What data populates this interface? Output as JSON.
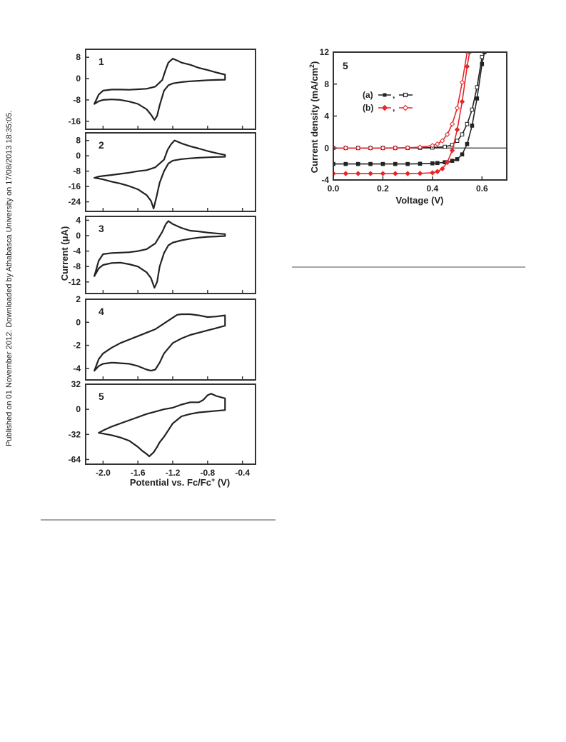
{
  "side_note": "Published on 01 November 2012. Downloaded by Athabasca University on 17/08/2013 18:35:05.",
  "colors": {
    "black": "#222222",
    "red": "#e8262b",
    "frame": "#333333",
    "separator": "#a6a6a6"
  },
  "chart_data": [
    {
      "type": "line",
      "xlabel": "Potential vs. Fc/Fc",
      "xlabel_sup": "+",
      "xlabel_tail": " (V)",
      "ylabel": "Current (μA)",
      "xlim": [
        -2.2,
        -0.25
      ],
      "xticks": [
        "-2.0",
        "-1.6",
        "-1.2",
        "-0.8",
        "-0.4"
      ],
      "xtick_values": [
        -2.0,
        -1.6,
        -1.2,
        -0.8,
        -0.4
      ],
      "panels": [
        {
          "label": "1",
          "ylim": [
            -19,
            11
          ],
          "yticks": [
            "8",
            "0",
            "-8",
            "-16"
          ],
          "ytick_values": [
            8,
            0,
            -8,
            -16
          ],
          "x": [
            -2.1,
            -2.05,
            -2.0,
            -1.9,
            -1.8,
            -1.7,
            -1.6,
            -1.5,
            -1.45,
            -1.41,
            -1.38,
            -1.35,
            -1.3,
            -1.25,
            -1.2,
            -1.1,
            -1.0,
            -0.9,
            -0.8,
            -0.7,
            -0.6,
            -0.6,
            -0.7,
            -0.8,
            -0.9,
            -1.0,
            -1.1,
            -1.15,
            -1.2,
            -1.25,
            -1.28,
            -1.32,
            -1.4,
            -1.5,
            -1.6,
            -1.7,
            -1.8,
            -1.9,
            -2.0,
            -2.05,
            -2.1
          ],
          "y": [
            -9.5,
            -8.5,
            -8.0,
            -7.8,
            -8.0,
            -8.6,
            -9.5,
            -11.5,
            -13.5,
            -15.5,
            -14.0,
            -10.0,
            -4.5,
            -2.5,
            -1.8,
            -1.3,
            -1.0,
            -0.8,
            -0.6,
            -0.5,
            -0.4,
            1.5,
            2.3,
            3.2,
            4.0,
            5.2,
            6.0,
            6.8,
            7.5,
            6.0,
            3.5,
            -0.5,
            -3.0,
            -3.8,
            -4.0,
            -4.2,
            -4.1,
            -4.1,
            -4.5,
            -6.0,
            -9.5
          ]
        },
        {
          "label": "2",
          "ylim": [
            -29,
            12
          ],
          "yticks": [
            "8",
            "0",
            "-8",
            "-16",
            "-24"
          ],
          "ytick_values": [
            8,
            0,
            -8,
            -16,
            -24
          ],
          "x": [
            -2.1,
            -2.05,
            -2.0,
            -1.9,
            -1.8,
            -1.7,
            -1.6,
            -1.5,
            -1.45,
            -1.42,
            -1.39,
            -1.35,
            -1.3,
            -1.25,
            -1.2,
            -1.1,
            -1.0,
            -0.9,
            -0.8,
            -0.7,
            -0.6,
            -0.6,
            -0.7,
            -0.8,
            -0.9,
            -1.0,
            -1.1,
            -1.15,
            -1.18,
            -1.22,
            -1.26,
            -1.3,
            -1.4,
            -1.5,
            -1.6,
            -1.7,
            -1.8,
            -1.9,
            -2.0,
            -2.05,
            -2.1
          ],
          "y": [
            -11.5,
            -11.8,
            -12.3,
            -13.5,
            -14.5,
            -15.8,
            -17.5,
            -20.5,
            -23.5,
            -27.5,
            -22.0,
            -14.0,
            -8.0,
            -4.0,
            -2.5,
            -1.7,
            -1.3,
            -1.0,
            -0.8,
            -0.6,
            -0.5,
            0.5,
            1.4,
            2.5,
            3.8,
            5.0,
            6.5,
            7.5,
            8.0,
            6.0,
            3.0,
            -2.0,
            -6.0,
            -7.5,
            -8.0,
            -8.8,
            -9.4,
            -10.0,
            -10.5,
            -10.8,
            -11.5
          ]
        },
        {
          "label": "3",
          "ylim": [
            -15,
            5
          ],
          "yticks": [
            "4",
            "0",
            "-4",
            "-8",
            "-12"
          ],
          "ytick_values": [
            4,
            0,
            -4,
            -8,
            -12
          ],
          "x": [
            -2.1,
            -2.05,
            -2.0,
            -1.9,
            -1.8,
            -1.7,
            -1.6,
            -1.5,
            -1.45,
            -1.41,
            -1.38,
            -1.35,
            -1.3,
            -1.25,
            -1.2,
            -1.1,
            -1.0,
            -0.9,
            -0.8,
            -0.7,
            -0.6,
            -0.6,
            -0.7,
            -0.8,
            -0.9,
            -1.0,
            -1.1,
            -1.2,
            -1.25,
            -1.28,
            -1.32,
            -1.4,
            -1.5,
            -1.6,
            -1.7,
            -1.8,
            -1.9,
            -2.0,
            -2.05,
            -2.1
          ],
          "y": [
            -10.5,
            -8.5,
            -7.6,
            -7.1,
            -7.0,
            -7.4,
            -8.0,
            -9.5,
            -11.0,
            -13.5,
            -12.0,
            -8.0,
            -4.5,
            -2.5,
            -1.8,
            -1.2,
            -0.8,
            -0.5,
            -0.3,
            -0.2,
            -0.1,
            0.4,
            0.6,
            0.8,
            1.1,
            1.3,
            2.0,
            3.0,
            3.8,
            3.0,
            1.0,
            -2.0,
            -3.5,
            -4.0,
            -4.3,
            -4.4,
            -4.5,
            -4.8,
            -6.5,
            -10.5
          ]
        },
        {
          "label": "4",
          "ylim": [
            -5,
            2
          ],
          "yticks": [
            "2",
            "0",
            "-2",
            "-4"
          ],
          "ytick_values": [
            2,
            0,
            -2,
            -4
          ],
          "x": [
            -2.1,
            -2.05,
            -2.0,
            -1.95,
            -1.9,
            -1.85,
            -1.8,
            -1.7,
            -1.6,
            -1.5,
            -1.45,
            -1.4,
            -1.35,
            -1.3,
            -1.2,
            -1.1,
            -1.0,
            -0.9,
            -0.8,
            -0.7,
            -0.6,
            -0.6,
            -0.7,
            -0.8,
            -0.9,
            -1.0,
            -1.1,
            -1.15,
            -1.2,
            -1.3,
            -1.4,
            -1.5,
            -1.6,
            -1.7,
            -1.8,
            -1.9,
            -2.0,
            -2.05,
            -2.1
          ],
          "y": [
            -4.2,
            -3.8,
            -3.6,
            -3.55,
            -3.5,
            -3.52,
            -3.55,
            -3.6,
            -3.8,
            -4.1,
            -4.2,
            -4.1,
            -3.5,
            -2.7,
            -1.8,
            -1.4,
            -1.1,
            -0.9,
            -0.7,
            -0.5,
            -0.3,
            0.6,
            0.5,
            0.45,
            0.6,
            0.7,
            0.7,
            0.65,
            0.4,
            -0.1,
            -0.6,
            -0.9,
            -1.2,
            -1.5,
            -1.8,
            -2.2,
            -2.7,
            -3.2,
            -4.2
          ]
        },
        {
          "label": "5",
          "ylim": [
            -70,
            32
          ],
          "yticks": [
            "32",
            "0",
            "-32",
            "-64"
          ],
          "ytick_values": [
            32,
            0,
            -32,
            -64
          ],
          "x": [
            -2.05,
            -1.9,
            -1.8,
            -1.7,
            -1.6,
            -1.55,
            -1.5,
            -1.47,
            -1.42,
            -1.38,
            -1.35,
            -1.3,
            -1.2,
            -1.1,
            -1.0,
            -0.9,
            -0.8,
            -0.7,
            -0.6,
            -0.6,
            -0.7,
            -0.76,
            -0.8,
            -0.85,
            -0.9,
            -1.0,
            -1.1,
            -1.2,
            -1.3,
            -1.4,
            -1.5,
            -1.6,
            -1.7,
            -1.8,
            -1.9,
            -2.0,
            -2.05
          ],
          "y": [
            -30,
            -33,
            -36,
            -40,
            -48,
            -53,
            -57,
            -60,
            -55,
            -48,
            -42,
            -35,
            -18,
            -9,
            -6,
            -4,
            -3,
            -2,
            -1,
            14,
            17,
            20,
            18,
            12,
            9,
            9,
            6,
            2,
            0,
            -3,
            -6,
            -10,
            -14,
            -18,
            -22,
            -27,
            -30
          ]
        }
      ]
    },
    {
      "type": "line",
      "panel_label": "5",
      "xlabel": "Voltage (V)",
      "ylabel": "Current density (mA/cm",
      "ylabel_sup": "2",
      "ylabel_tail": ")",
      "xlim": [
        0.0,
        0.7
      ],
      "ylim": [
        -4,
        12
      ],
      "xticks": [
        "0.0",
        "0.2",
        "0.4",
        "0.6"
      ],
      "xtick_values": [
        0.0,
        0.2,
        0.4,
        0.6
      ],
      "yticks": [
        "12",
        "8",
        "4",
        "0",
        "-4"
      ],
      "ytick_values": [
        12,
        8,
        4,
        0,
        -4
      ],
      "zero_line": true,
      "legend": [
        {
          "label": "(a)",
          "color": "#222222"
        },
        {
          "label": "(b)",
          "color": "#e8262b"
        }
      ],
      "series": [
        {
          "color": "#222222",
          "filled": true,
          "x": [
            0.0,
            0.05,
            0.1,
            0.15,
            0.2,
            0.25,
            0.3,
            0.35,
            0.4,
            0.42,
            0.45,
            0.48,
            0.5,
            0.52,
            0.54,
            0.56,
            0.58,
            0.6,
            0.61
          ],
          "y": [
            -2.0,
            -2.0,
            -2.0,
            -2.0,
            -2.0,
            -2.0,
            -2.0,
            -1.97,
            -1.92,
            -1.88,
            -1.78,
            -1.6,
            -1.4,
            -0.8,
            0.5,
            2.8,
            6.2,
            10.5,
            12
          ]
        },
        {
          "color": "#222222",
          "filled": false,
          "x": [
            0.0,
            0.05,
            0.1,
            0.15,
            0.2,
            0.25,
            0.3,
            0.35,
            0.4,
            0.45,
            0.48,
            0.5,
            0.52,
            0.54,
            0.56,
            0.58,
            0.6
          ],
          "y": [
            0.0,
            0.0,
            0.0,
            0.0,
            0.0,
            0.0,
            0.01,
            0.02,
            0.05,
            0.15,
            0.4,
            0.9,
            1.7,
            3.0,
            4.8,
            7.6,
            11.4
          ]
        },
        {
          "color": "#e8262b",
          "filled": true,
          "x": [
            0.0,
            0.05,
            0.1,
            0.15,
            0.2,
            0.25,
            0.3,
            0.35,
            0.4,
            0.42,
            0.44,
            0.46,
            0.48,
            0.5,
            0.52,
            0.54,
            0.55
          ],
          "y": [
            -3.2,
            -3.2,
            -3.2,
            -3.2,
            -3.2,
            -3.2,
            -3.2,
            -3.18,
            -3.1,
            -2.95,
            -2.6,
            -1.8,
            -0.3,
            2.3,
            5.8,
            10.2,
            12
          ]
        },
        {
          "color": "#e8262b",
          "filled": false,
          "x": [
            0.0,
            0.05,
            0.1,
            0.15,
            0.2,
            0.25,
            0.3,
            0.35,
            0.4,
            0.42,
            0.44,
            0.46,
            0.48,
            0.5,
            0.52,
            0.54
          ],
          "y": [
            0.0,
            0.0,
            0.0,
            0.0,
            0.0,
            0.01,
            0.03,
            0.1,
            0.3,
            0.5,
            0.9,
            1.7,
            3.0,
            5.0,
            8.2,
            12
          ]
        }
      ]
    }
  ]
}
